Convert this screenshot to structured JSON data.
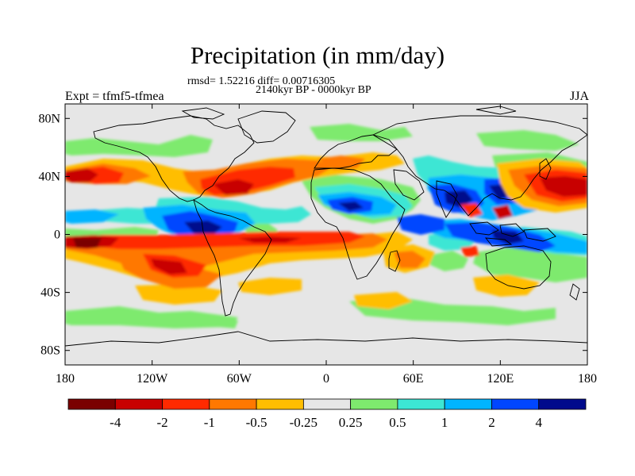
{
  "title": "Precipitation (in mm/day)",
  "stats_line": "rmsd= 1.52216  diff= 0.00716305",
  "period_line": "2140kyr BP - 0000kyr BP",
  "experiment": "Expt = tfmf5-tfmea",
  "season": "JJA",
  "axes": {
    "x_ticks": [
      "180",
      "120W",
      "60W",
      "0",
      "60E",
      "120E",
      "180"
    ],
    "y_ticks": [
      "80N",
      "40N",
      "0",
      "40S",
      "80S"
    ]
  },
  "colorbar": {
    "colors": [
      "#7a0000",
      "#c80000",
      "#ff2a00",
      "#ff7800",
      "#ffbe00",
      "#e6e6e6",
      "#7eea6e",
      "#3ce6d4",
      "#00b4ff",
      "#0046ff",
      "#000a8c"
    ],
    "labels": [
      "-4",
      "-2",
      "-1",
      "-0.5",
      "-0.25",
      "0.25",
      "0.5",
      "1",
      "2",
      "4"
    ]
  },
  "chart_data": {
    "type": "heatmap",
    "title": "Precipitation (in mm/day)",
    "subtitle": "2140kyr BP - 0000kyr BP",
    "variable": "precipitation difference",
    "units": "mm/day",
    "x_range": [
      -180,
      180
    ],
    "y_range": [
      -90,
      90
    ],
    "levels": [
      -4,
      -2,
      -1,
      -0.5,
      -0.25,
      0.25,
      0.5,
      1,
      2,
      4
    ],
    "fields": [
      {
        "lon": -165,
        "lat": -8,
        "value": -5
      },
      {
        "lon": -100,
        "lat": -22,
        "value": -2
      },
      {
        "lon": -78,
        "lat": 22,
        "value": -2
      },
      {
        "lon": -48,
        "lat": 25,
        "value": -2
      },
      {
        "lon": -10,
        "lat": -5,
        "value": -2
      },
      {
        "lon": 150,
        "lat": 32,
        "value": -2
      },
      {
        "lon": -95,
        "lat": 6,
        "value": 4
      },
      {
        "lon": -20,
        "lat": 10,
        "value": 2
      },
      {
        "lon": 10,
        "lat": 8,
        "value": 2
      },
      {
        "lon": 85,
        "lat": 22,
        "value": 4
      },
      {
        "lon": 130,
        "lat": 2,
        "value": 4
      }
    ]
  }
}
